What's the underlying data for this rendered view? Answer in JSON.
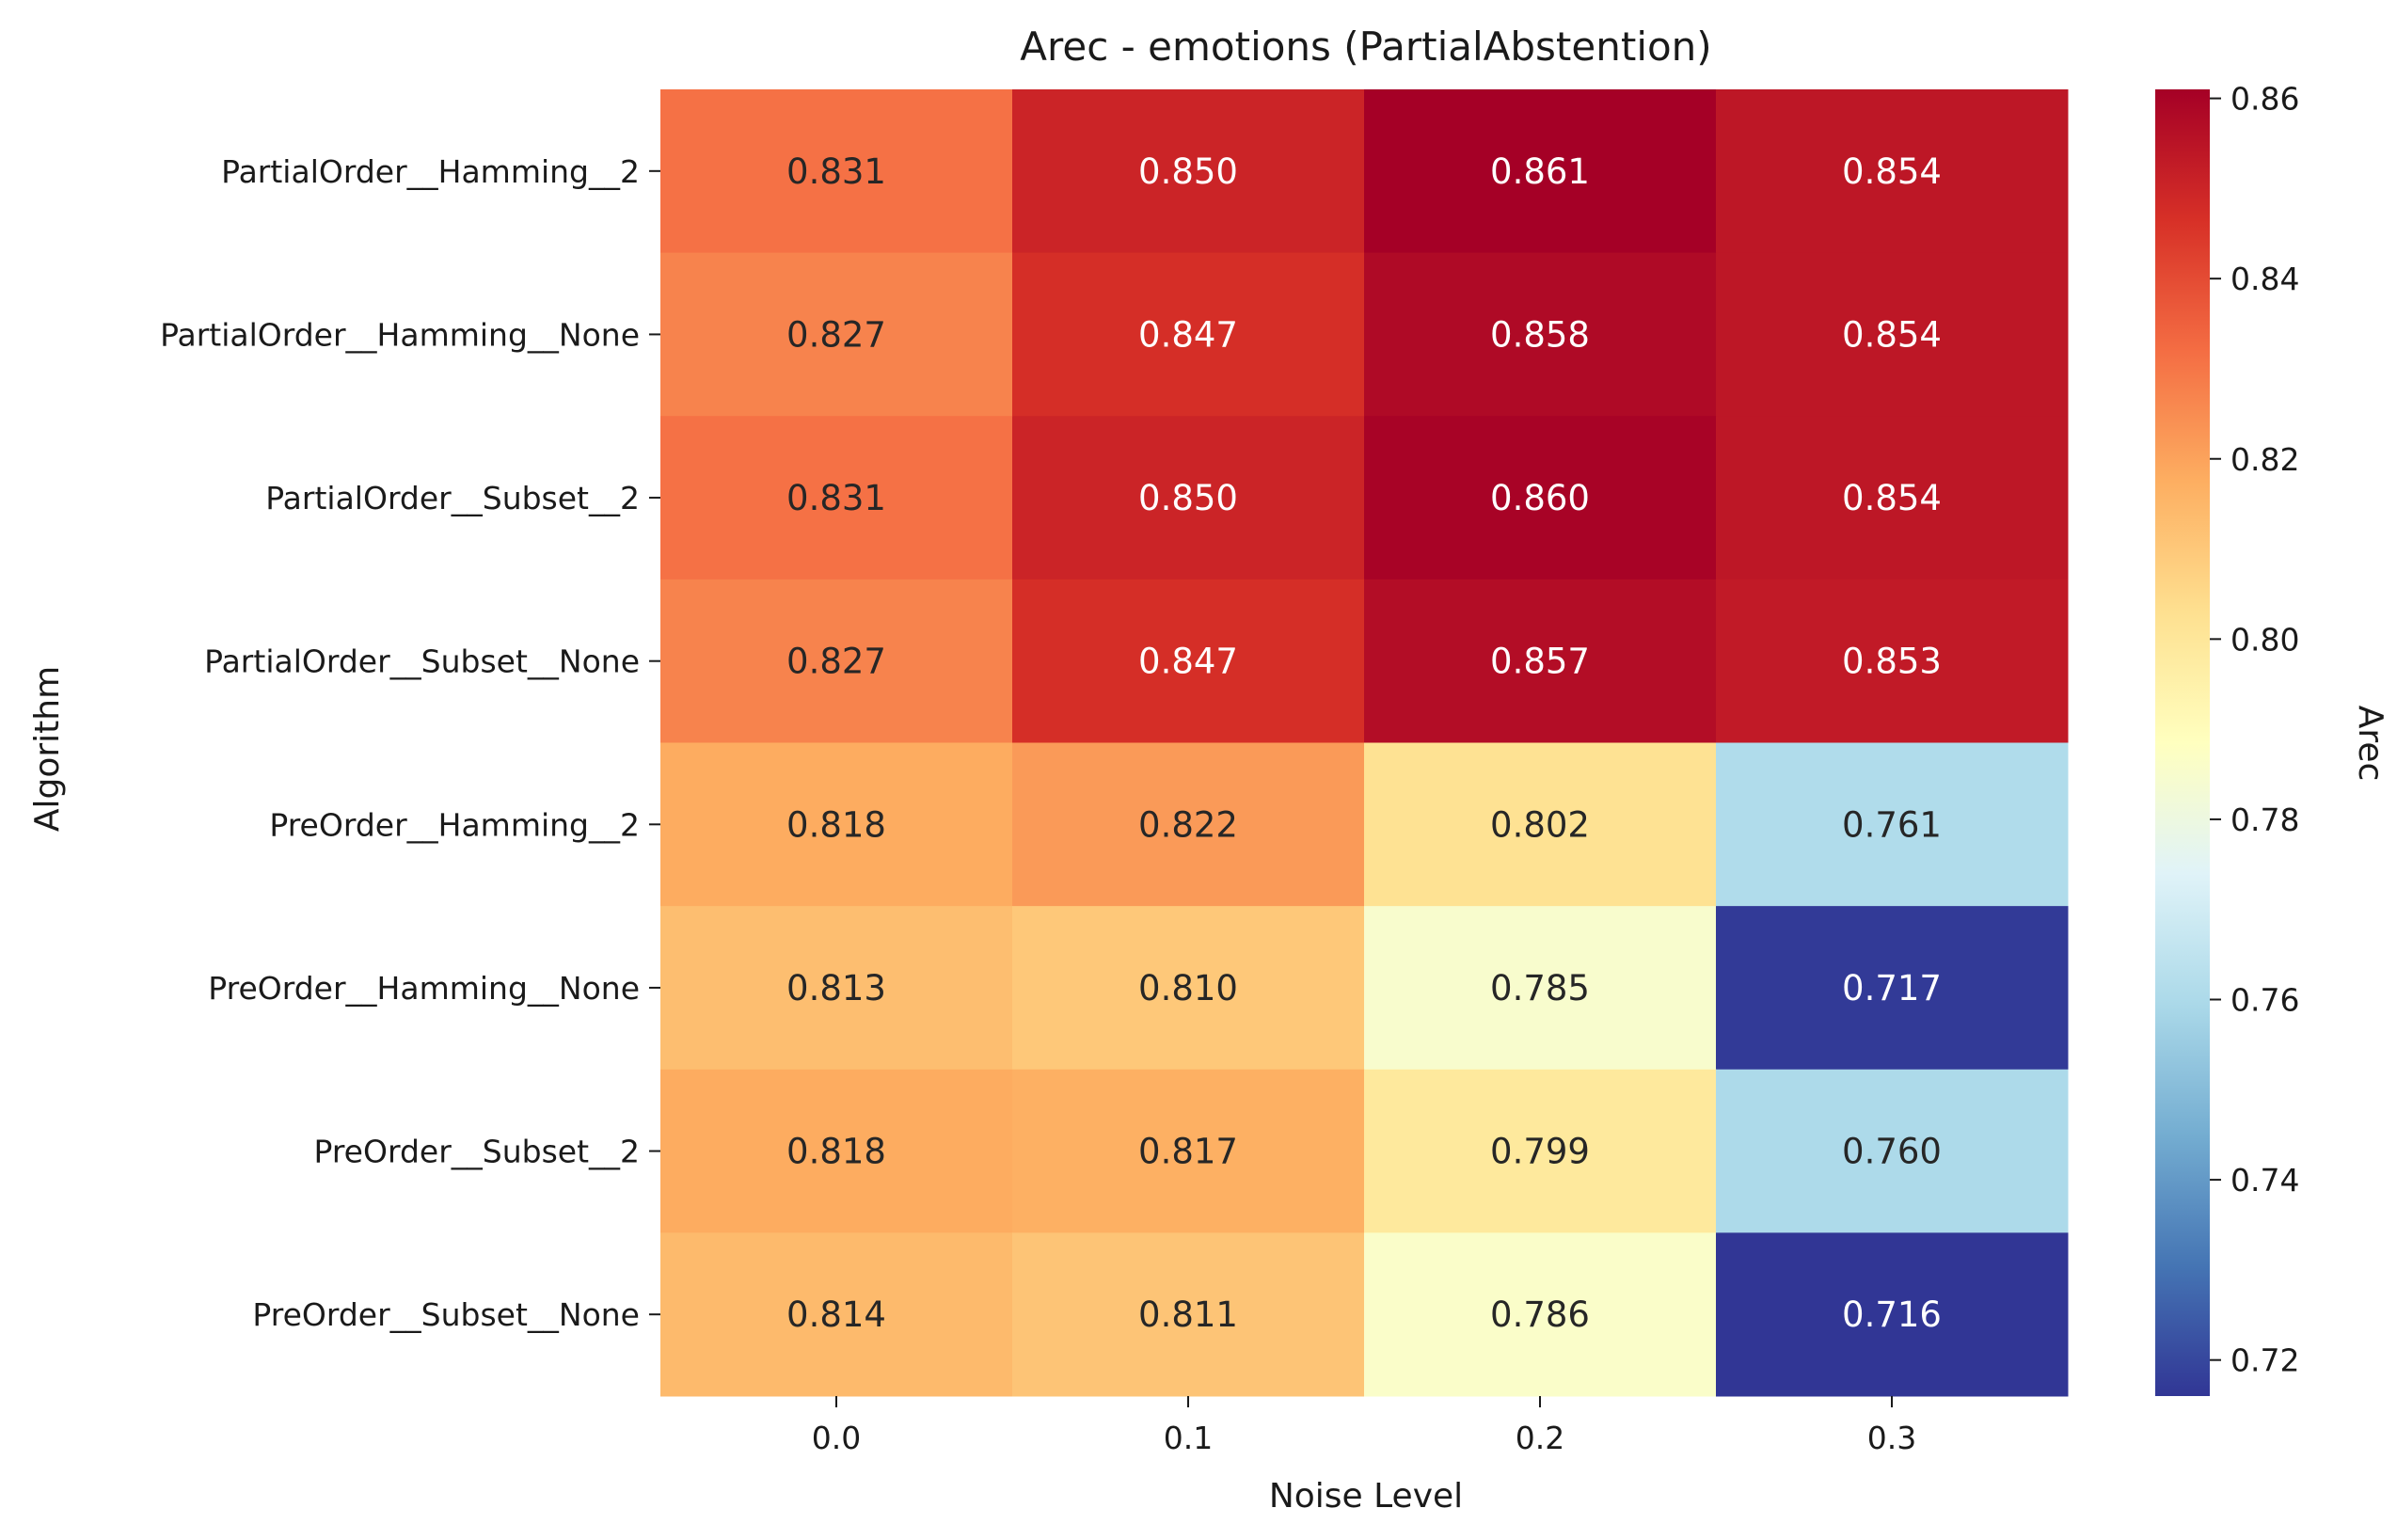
{
  "chart_data": {
    "type": "heatmap",
    "title": "Arec - emotions (PartialAbstention)",
    "xlabel": "Noise Level",
    "ylabel": "Algorithm",
    "x": [
      "0.0",
      "0.1",
      "0.2",
      "0.3"
    ],
    "y": [
      "PartialOrder__Hamming__2",
      "PartialOrder__Hamming__None",
      "PartialOrder__Subset__2",
      "PartialOrder__Subset__None",
      "PreOrder__Hamming__2",
      "PreOrder__Hamming__None",
      "PreOrder__Subset__2",
      "PreOrder__Subset__None"
    ],
    "values": [
      [
        0.831,
        0.85,
        0.861,
        0.854
      ],
      [
        0.827,
        0.847,
        0.858,
        0.854
      ],
      [
        0.831,
        0.85,
        0.86,
        0.854
      ],
      [
        0.827,
        0.847,
        0.857,
        0.853
      ],
      [
        0.818,
        0.822,
        0.802,
        0.761
      ],
      [
        0.813,
        0.81,
        0.785,
        0.717
      ],
      [
        0.818,
        0.817,
        0.799,
        0.76
      ],
      [
        0.814,
        0.811,
        0.786,
        0.716
      ]
    ],
    "value_labels": [
      [
        "0.831",
        "0.850",
        "0.861",
        "0.854"
      ],
      [
        "0.827",
        "0.847",
        "0.858",
        "0.854"
      ],
      [
        "0.831",
        "0.850",
        "0.860",
        "0.854"
      ],
      [
        "0.827",
        "0.847",
        "0.857",
        "0.853"
      ],
      [
        "0.818",
        "0.822",
        "0.802",
        "0.761"
      ],
      [
        "0.813",
        "0.810",
        "0.785",
        "0.717"
      ],
      [
        "0.818",
        "0.817",
        "0.799",
        "0.760"
      ],
      [
        "0.814",
        "0.811",
        "0.786",
        "0.716"
      ]
    ],
    "colorbar": {
      "label": "Arec",
      "range": [
        0.716,
        0.861
      ],
      "ticks": [
        "0.72",
        "0.74",
        "0.76",
        "0.78",
        "0.80",
        "0.82",
        "0.84",
        "0.86"
      ],
      "colormap": "RdYlBu_r"
    },
    "grid": false
  }
}
